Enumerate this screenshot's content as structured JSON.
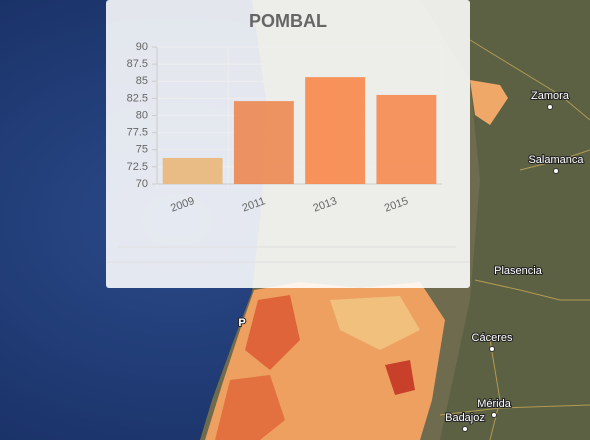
{
  "chart_data": {
    "type": "bar",
    "title": "POMBAL",
    "categories": [
      "2009",
      "2011",
      "2013",
      "2015"
    ],
    "values": [
      73.8,
      82.1,
      85.6,
      83.0
    ],
    "colors": [
      "#e9b77a",
      "#ec8752",
      "#f7884a",
      "#f58a50"
    ],
    "ylim": [
      70,
      90
    ],
    "yticks": [
      70,
      72.5,
      75,
      77.5,
      80,
      82.5,
      85,
      87.5,
      90
    ],
    "grid": true
  },
  "map": {
    "labels": [
      "Zamora",
      "Salamanca",
      "Plasencia",
      "Cáceres",
      "Mérida",
      "Badajoz",
      "P"
    ]
  }
}
